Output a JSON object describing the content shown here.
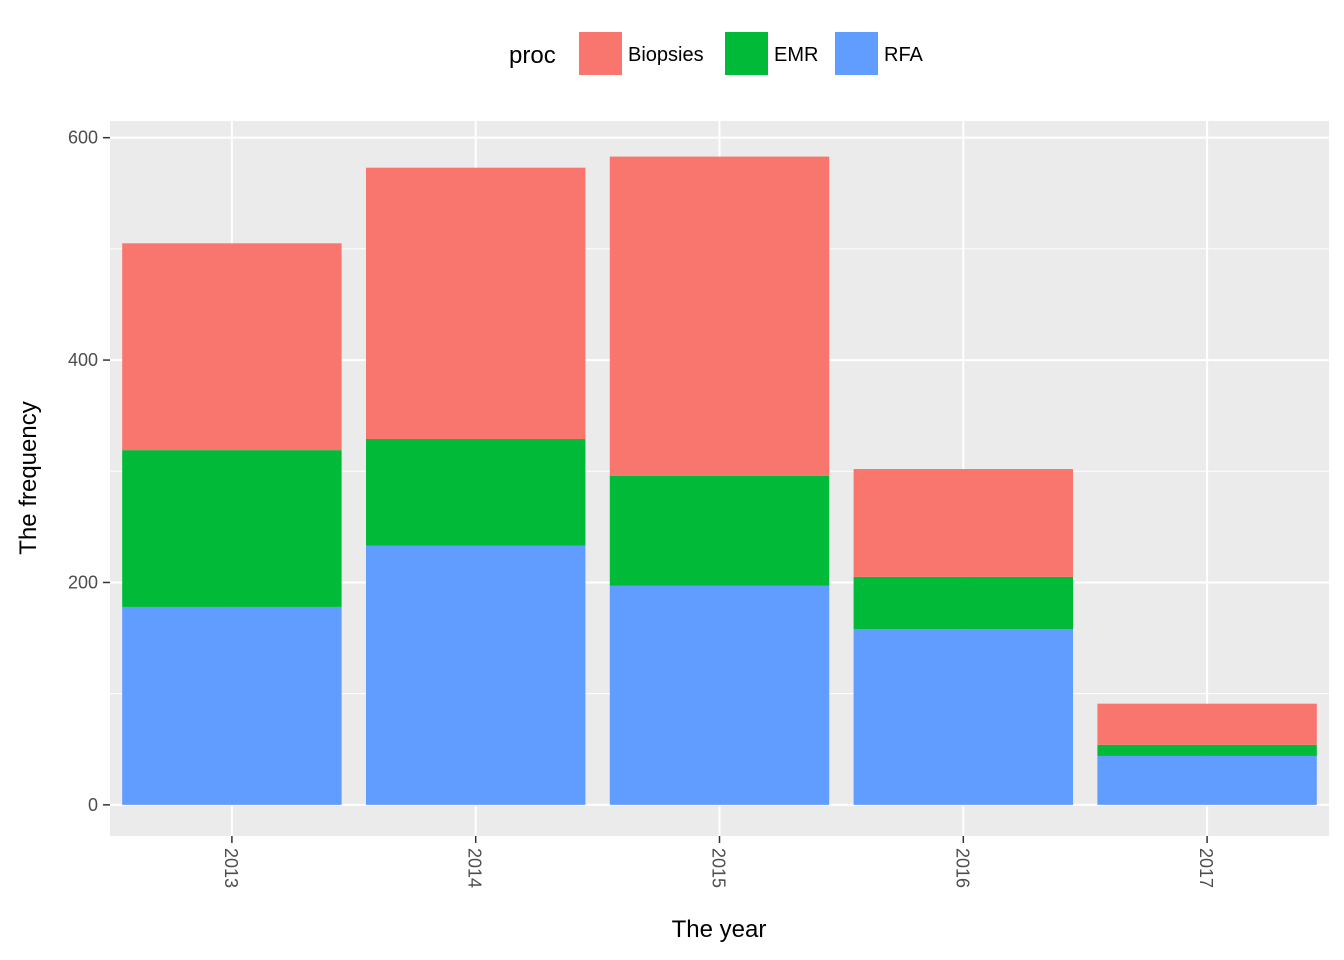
{
  "chart_data": {
    "type": "bar",
    "stacked": true,
    "title": "",
    "xlabel": "The year",
    "ylabel": "The frequency",
    "categories": [
      "2013",
      "2014",
      "2015",
      "2016",
      "2017"
    ],
    "series": [
      {
        "name": "RFA",
        "color": "#619CFF",
        "values": [
          178,
          233,
          197,
          158,
          44
        ]
      },
      {
        "name": "EMR",
        "color": "#00BA38",
        "values": [
          141,
          96,
          99,
          47,
          10
        ]
      },
      {
        "name": "Biopsies",
        "color": "#F8766D",
        "values": [
          186,
          244,
          287,
          97,
          37
        ]
      }
    ],
    "ylim": [
      -28,
      615
    ],
    "yticks": [
      0,
      200,
      400,
      600
    ],
    "grid": true,
    "background": "#EBEBEB",
    "legend": {
      "title": "proc",
      "position": "top",
      "entries": [
        "Biopsies",
        "EMR",
        "RFA"
      ]
    }
  }
}
